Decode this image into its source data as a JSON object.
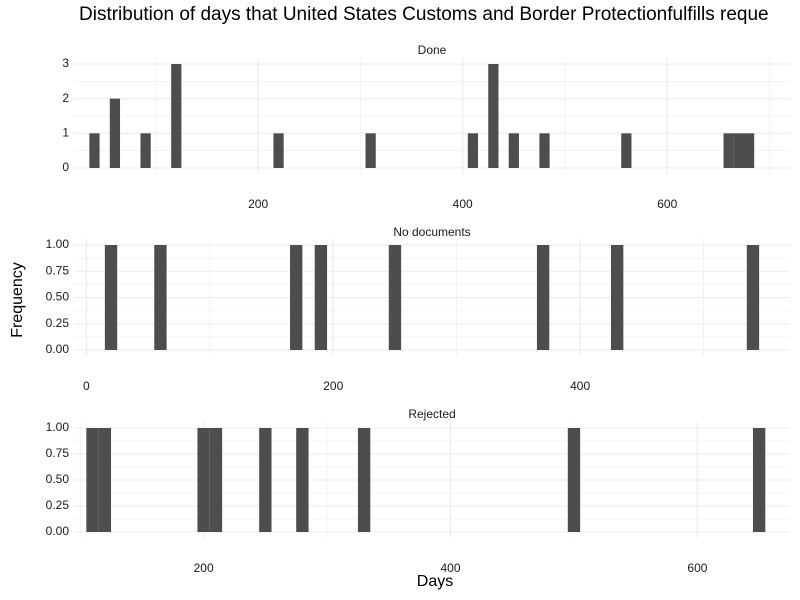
{
  "chart_data": {
    "type": "bar",
    "title": "Distribution of days that United States Customs and Border Protectionfulfills reque",
    "xlabel": "Days",
    "ylabel": "Frequency",
    "grid": true,
    "bar_color": "#4d4d4d",
    "grid_color": "#ebebeb",
    "facets": [
      {
        "name": "Done",
        "xlim": [
          20,
          720
        ],
        "ylim": [
          0,
          3
        ],
        "xticks": [
          200,
          400,
          600
        ],
        "yticks": [
          0,
          1,
          2,
          3
        ],
        "ytick_labels": [
          "0",
          "1",
          "2",
          "3"
        ],
        "bin_width": 10,
        "bins": [
          {
            "x": 40,
            "count": 1
          },
          {
            "x": 60,
            "count": 2
          },
          {
            "x": 90,
            "count": 1
          },
          {
            "x": 120,
            "count": 3
          },
          {
            "x": 220,
            "count": 1
          },
          {
            "x": 310,
            "count": 1
          },
          {
            "x": 410,
            "count": 1
          },
          {
            "x": 430,
            "count": 3
          },
          {
            "x": 450,
            "count": 1
          },
          {
            "x": 480,
            "count": 1
          },
          {
            "x": 560,
            "count": 1
          },
          {
            "x": 660,
            "count": 1
          },
          {
            "x": 670,
            "count": 1
          },
          {
            "x": 680,
            "count": 1
          }
        ]
      },
      {
        "name": "No documents",
        "xlim": [
          -10,
          570
        ],
        "ylim": [
          0,
          1
        ],
        "xticks": [
          0,
          200,
          400
        ],
        "yticks": [
          0,
          0.25,
          0.5,
          0.75,
          1
        ],
        "ytick_labels": [
          "0.00",
          "0.25",
          "0.50",
          "0.75",
          "1.00"
        ],
        "bin_width": 10,
        "bins": [
          {
            "x": 20,
            "count": 1
          },
          {
            "x": 60,
            "count": 1
          },
          {
            "x": 170,
            "count": 1
          },
          {
            "x": 190,
            "count": 1
          },
          {
            "x": 250,
            "count": 1
          },
          {
            "x": 370,
            "count": 1
          },
          {
            "x": 430,
            "count": 1
          },
          {
            "x": 540,
            "count": 1
          }
        ]
      },
      {
        "name": "Rejected",
        "xlim": [
          95,
          675
        ],
        "ylim": [
          0,
          1
        ],
        "xticks": [
          200,
          400,
          600
        ],
        "yticks": [
          0,
          0.25,
          0.5,
          0.75,
          1
        ],
        "ytick_labels": [
          "0.00",
          "0.25",
          "0.50",
          "0.75",
          "1.00"
        ],
        "bin_width": 10,
        "bins": [
          {
            "x": 110,
            "count": 1
          },
          {
            "x": 120,
            "count": 1
          },
          {
            "x": 200,
            "count": 1
          },
          {
            "x": 210,
            "count": 1
          },
          {
            "x": 250,
            "count": 1
          },
          {
            "x": 280,
            "count": 1
          },
          {
            "x": 330,
            "count": 1
          },
          {
            "x": 500,
            "count": 1
          },
          {
            "x": 650,
            "count": 1
          }
        ]
      }
    ]
  }
}
